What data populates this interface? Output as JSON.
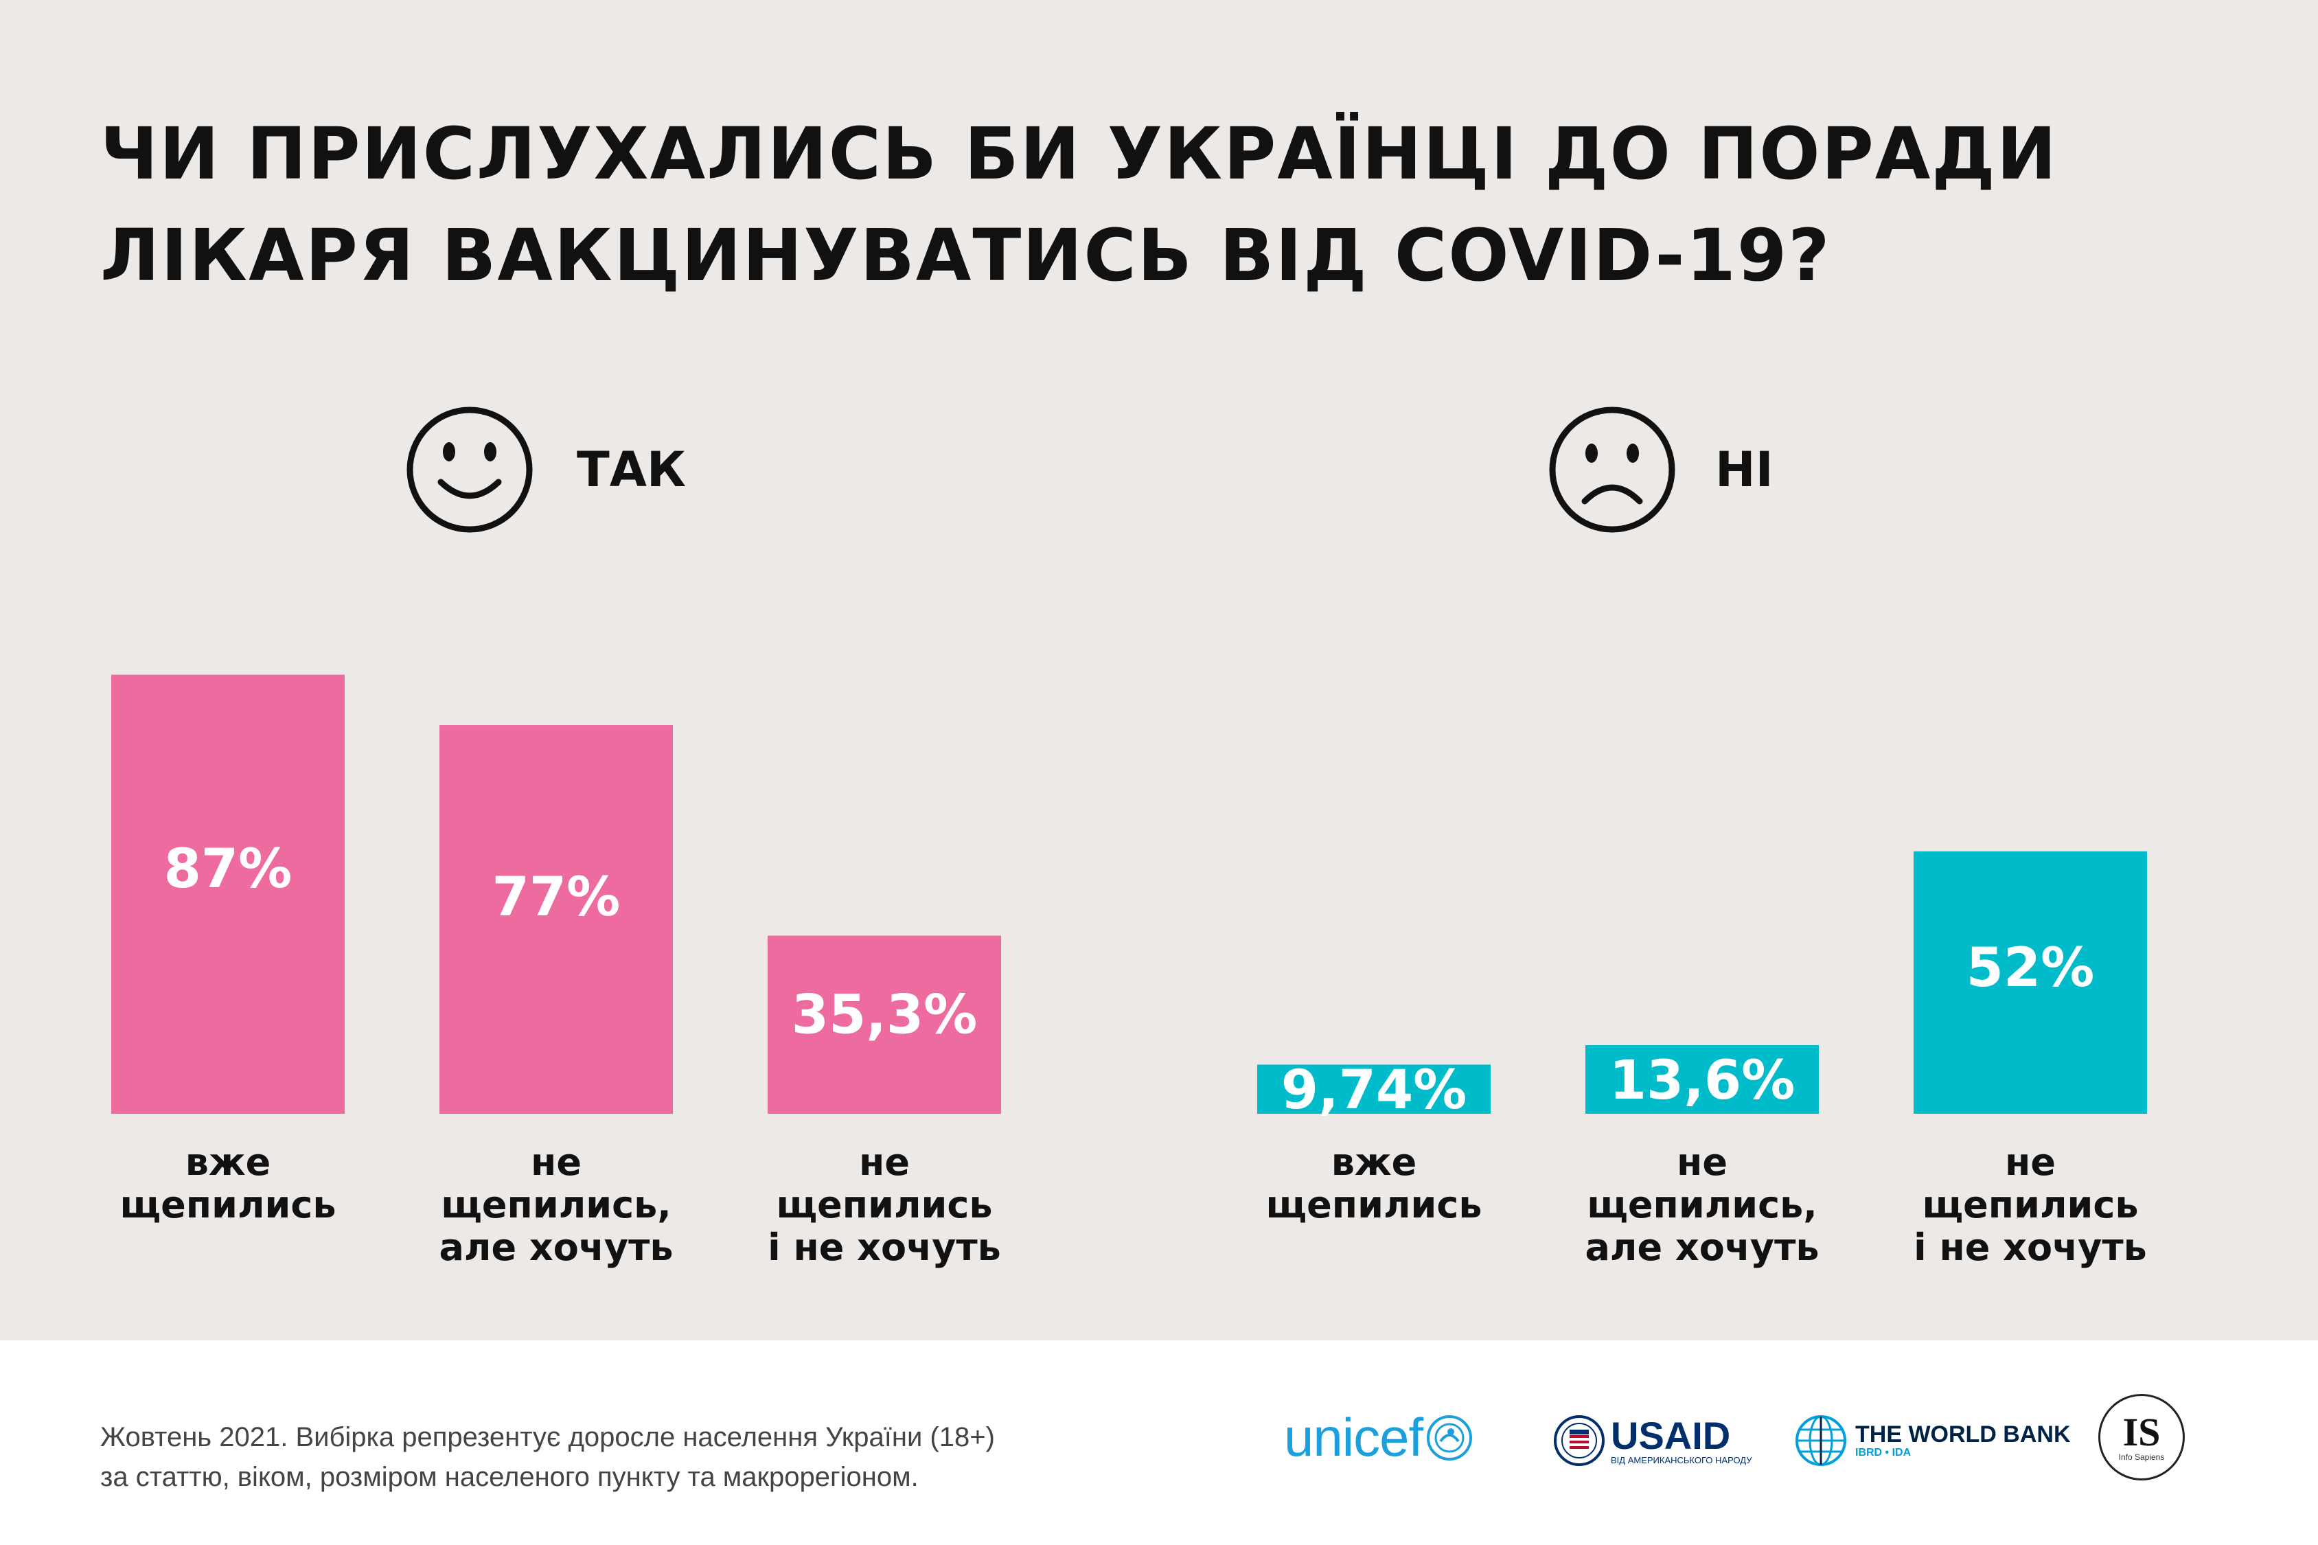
{
  "title": {
    "line1": "ЧИ ПРИСЛУХАЛИСЬ БИ УКРАЇНЦІ ДО ПОРАДИ",
    "line2": "ЛІКАРЯ ВАКЦИНУВАТИСЬ ВІД COVID-19?"
  },
  "groups": {
    "yes": {
      "label": "ТАК",
      "icon": "smiley-face-icon",
      "color": "#ee6ba0"
    },
    "no": {
      "label": "НІ",
      "icon": "sad-face-icon",
      "color": "#00bccb"
    }
  },
  "chart_data": {
    "type": "bar",
    "series": [
      {
        "name": "ТАК",
        "color": "#ee6ba0",
        "values": [
          87,
          77,
          35.3
        ],
        "value_labels": [
          "87%",
          "77%",
          "35,3%"
        ],
        "categories": [
          [
            "вже",
            "щепились"
          ],
          [
            "не",
            "щепились,",
            "але хочуть"
          ],
          [
            "не",
            "щепились",
            "і не хочуть"
          ]
        ]
      },
      {
        "name": "НІ",
        "color": "#00bccb",
        "values": [
          9.74,
          13.6,
          52
        ],
        "value_labels": [
          "9,74%",
          "13,6%",
          "52%"
        ],
        "categories": [
          [
            "вже",
            "щепились"
          ],
          [
            "не",
            "щепились,",
            "але хочуть"
          ],
          [
            "не",
            "щепились",
            "і не хочуть"
          ]
        ]
      }
    ],
    "grid": false,
    "legend": "none"
  },
  "footer": {
    "note_line1": "Жовтень 2021. Вибірка репрезентує доросле населення України (18+)",
    "note_line2": "за статтю, віком, розміром населеного пункту та макрорегіоном.",
    "logos": {
      "unicef": "unicef",
      "usaid": "USAID",
      "usaid_sub": "ВІД АМЕРИКАНСЬКОГО НАРОДУ",
      "worldbank": "THE WORLD BANK",
      "worldbank_sub": "IBRD • IDA",
      "infosapiens_mark": "IS",
      "infosapiens_sub": "Info Sapiens"
    }
  }
}
